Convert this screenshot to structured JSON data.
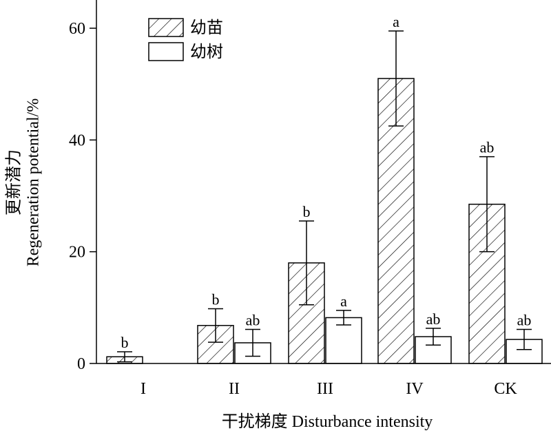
{
  "chart_data": {
    "type": "bar",
    "xlabel": "干扰梯度 Disturbance intensity",
    "ylabel_cn": "更新潜力",
    "ylabel_en": "Regeneration potential/%",
    "ylim": [
      0,
      65
    ],
    "yticks": [
      0,
      20,
      40,
      60
    ],
    "categories": [
      "I",
      "II",
      "III",
      "IV",
      "CK"
    ],
    "series": [
      {
        "name": "幼苗",
        "pattern": "hatched",
        "values": [
          1.2,
          6.8,
          18.0,
          51.0,
          28.5
        ],
        "errors": [
          0.9,
          3.0,
          7.5,
          8.5,
          8.5
        ],
        "letters": [
          "b",
          "b",
          "b",
          "a",
          "ab"
        ]
      },
      {
        "name": "幼树",
        "pattern": "open",
        "values": [
          0,
          3.7,
          8.2,
          4.8,
          4.3
        ],
        "errors": [
          0,
          2.4,
          1.3,
          1.5,
          1.8
        ],
        "letters": [
          "",
          "ab",
          "a",
          "ab",
          "ab"
        ]
      }
    ],
    "legend_position": "top-left",
    "grid": false
  }
}
